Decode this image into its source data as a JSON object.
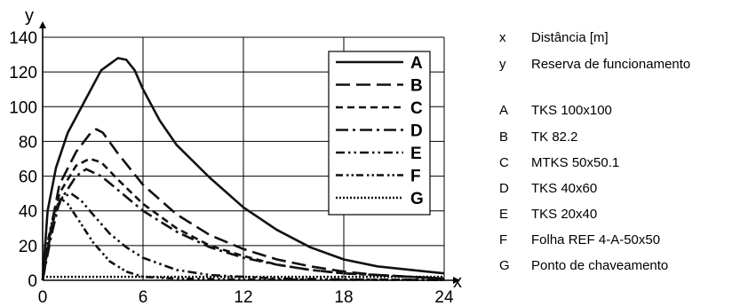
{
  "chart_data": {
    "type": "line",
    "xlabel": "x",
    "ylabel": "y",
    "xlim": [
      0,
      24
    ],
    "ylim": [
      0,
      140
    ],
    "xticks": [
      0,
      6,
      12,
      18,
      24
    ],
    "yticks": [
      0,
      20,
      40,
      60,
      80,
      100,
      120,
      140
    ],
    "grid": true,
    "legend_position": "top-right",
    "series": [
      {
        "name": "A",
        "dash": "solid",
        "points": [
          [
            0,
            0
          ],
          [
            0.3,
            40
          ],
          [
            0.8,
            65
          ],
          [
            1.5,
            85
          ],
          [
            2.5,
            103
          ],
          [
            3.5,
            121
          ],
          [
            4.5,
            128
          ],
          [
            5,
            127
          ],
          [
            5.5,
            121
          ],
          [
            6,
            110
          ],
          [
            7,
            92
          ],
          [
            8,
            78
          ],
          [
            10,
            59
          ],
          [
            12,
            42
          ],
          [
            14,
            29
          ],
          [
            16,
            19
          ],
          [
            18,
            12
          ],
          [
            20,
            8
          ],
          [
            22,
            6
          ],
          [
            24,
            4
          ]
        ]
      },
      {
        "name": "B",
        "dash": "longdash",
        "points": [
          [
            0,
            0
          ],
          [
            0.5,
            30
          ],
          [
            1,
            55
          ],
          [
            2,
            74
          ],
          [
            2.8,
            84
          ],
          [
            3.2,
            87
          ],
          [
            3.6,
            85
          ],
          [
            4.5,
            73
          ],
          [
            6,
            55
          ],
          [
            8,
            38
          ],
          [
            10,
            26
          ],
          [
            12,
            18
          ],
          [
            14,
            12
          ],
          [
            16,
            8
          ],
          [
            18,
            5
          ],
          [
            20,
            3
          ],
          [
            22,
            2
          ],
          [
            24,
            1
          ]
        ]
      },
      {
        "name": "C",
        "dash": "dash",
        "points": [
          [
            0,
            0
          ],
          [
            0.5,
            28
          ],
          [
            1,
            50
          ],
          [
            2,
            66
          ],
          [
            2.8,
            70
          ],
          [
            3.5,
            68
          ],
          [
            4.5,
            58
          ],
          [
            6,
            44
          ],
          [
            8,
            30
          ],
          [
            10,
            20
          ],
          [
            12,
            14
          ],
          [
            14,
            9
          ],
          [
            16,
            6
          ],
          [
            18,
            4
          ],
          [
            20,
            3
          ],
          [
            22,
            2
          ],
          [
            24,
            1
          ]
        ]
      },
      {
        "name": "D",
        "dash": "dashdot",
        "points": [
          [
            0,
            0
          ],
          [
            0.5,
            25
          ],
          [
            1,
            45
          ],
          [
            2,
            60
          ],
          [
            2.6,
            64
          ],
          [
            3.5,
            60
          ],
          [
            4.5,
            52
          ],
          [
            6,
            40
          ],
          [
            8,
            28
          ],
          [
            10,
            19
          ],
          [
            12,
            13
          ],
          [
            14,
            9
          ],
          [
            16,
            6
          ],
          [
            18,
            4
          ],
          [
            20,
            3
          ],
          [
            22,
            2
          ],
          [
            24,
            1
          ]
        ]
      },
      {
        "name": "E",
        "dash": "dashdotdot",
        "points": [
          [
            0,
            0
          ],
          [
            0.3,
            20
          ],
          [
            0.7,
            38
          ],
          [
            1.2,
            48
          ],
          [
            1.7,
            50
          ],
          [
            2.3,
            46
          ],
          [
            3,
            38
          ],
          [
            4,
            27
          ],
          [
            5,
            19
          ],
          [
            6,
            13
          ],
          [
            8,
            6
          ],
          [
            10,
            3
          ],
          [
            12,
            2
          ],
          [
            14,
            1
          ],
          [
            18,
            0.5
          ],
          [
            24,
            0.2
          ]
        ]
      },
      {
        "name": "F",
        "dash": "dashdotdot2",
        "points": [
          [
            0,
            0
          ],
          [
            0.3,
            22
          ],
          [
            0.7,
            40
          ],
          [
            1.1,
            47
          ],
          [
            1.5,
            44
          ],
          [
            2.2,
            34
          ],
          [
            3,
            22
          ],
          [
            4,
            11
          ],
          [
            5,
            5
          ],
          [
            6,
            2
          ],
          [
            8,
            1
          ],
          [
            12,
            0.5
          ],
          [
            24,
            0.2
          ]
        ]
      },
      {
        "name": "G",
        "dash": "dotted",
        "points": [
          [
            0,
            2
          ],
          [
            24,
            2
          ]
        ]
      }
    ]
  },
  "side_legend": [
    {
      "key": "x",
      "text": "Distância [m]"
    },
    {
      "key": "y",
      "text": "Reserva de funcionamento"
    },
    {
      "key": "A",
      "text": "TKS 100x100"
    },
    {
      "key": "B",
      "text": "TK 82.2"
    },
    {
      "key": "C",
      "text": "MTKS 50x50.1"
    },
    {
      "key": "D",
      "text": "TKS 40x60"
    },
    {
      "key": "E",
      "text": "TKS 20x40"
    },
    {
      "key": "F",
      "text": "Folha REF 4-A-50x50"
    },
    {
      "key": "G",
      "text": "Ponto de chaveamento"
    }
  ]
}
